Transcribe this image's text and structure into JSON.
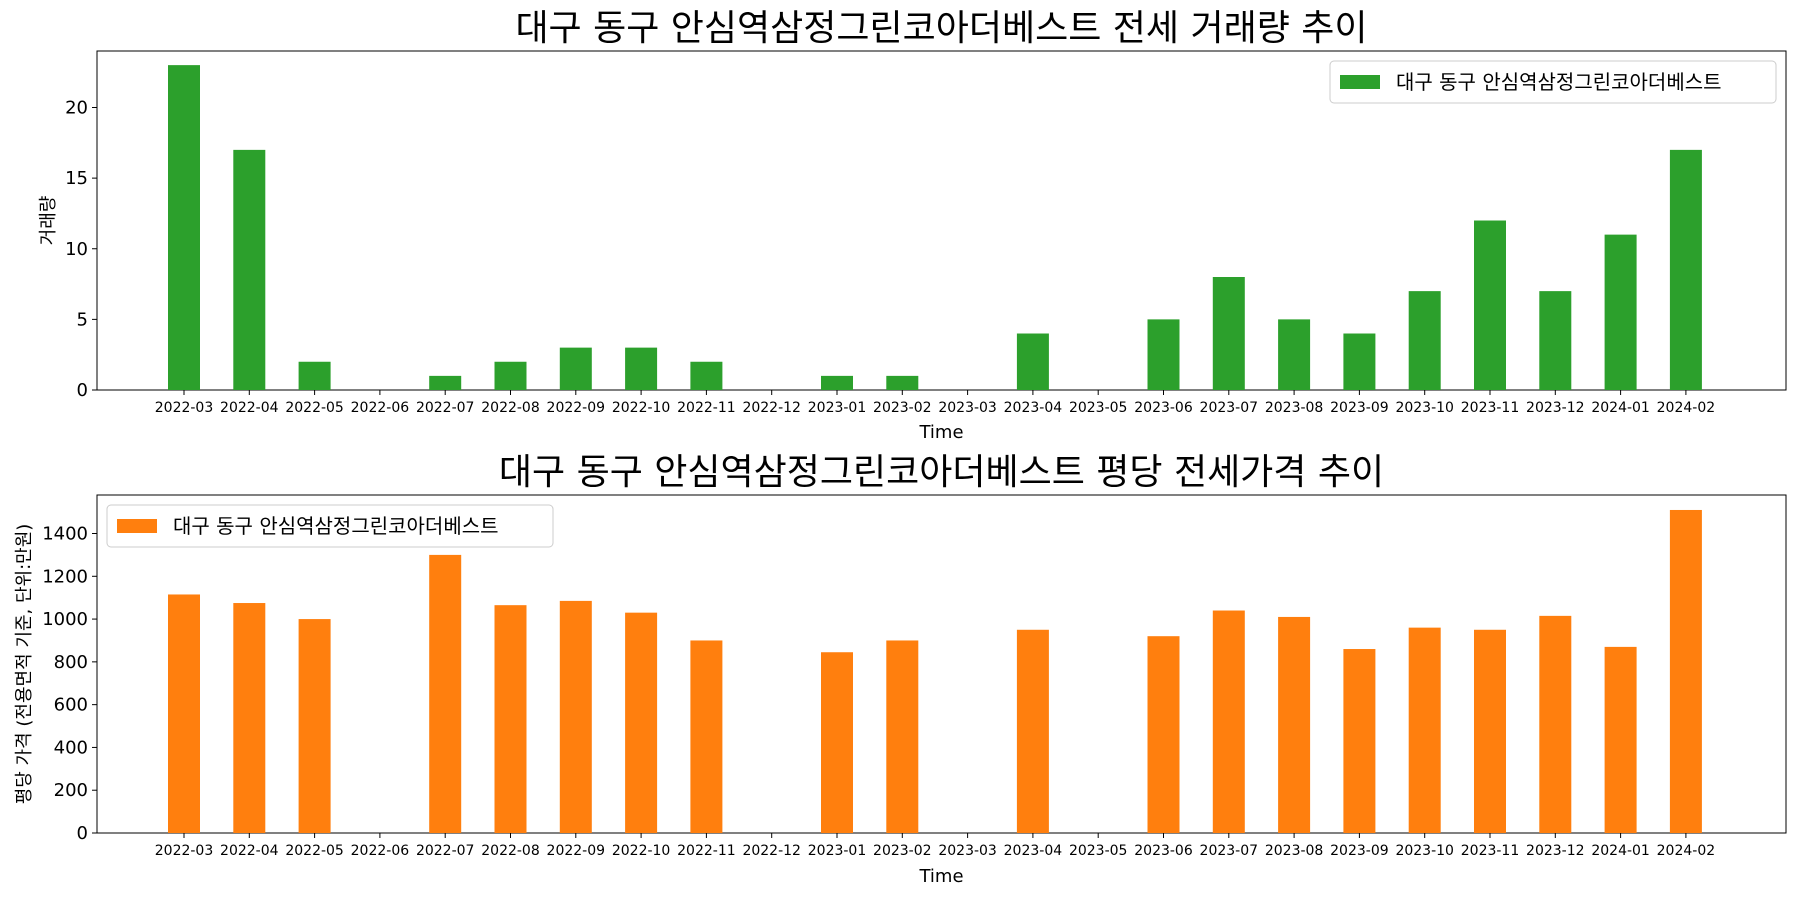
{
  "chart_data": [
    {
      "type": "bar",
      "title": "대구 동구 안심역삼정그린코아더베스트 전세 거래량 추이",
      "xlabel": "Time",
      "ylabel": "거래량",
      "ylim": [
        0,
        24
      ],
      "yticks": [
        0,
        5,
        10,
        15,
        20
      ],
      "legend_position": "upper right",
      "color": "#2ca02c",
      "categories": [
        "2022-03",
        "2022-04",
        "2022-05",
        "2022-06",
        "2022-07",
        "2022-08",
        "2022-09",
        "2022-10",
        "2022-11",
        "2022-12",
        "2023-01",
        "2023-02",
        "2023-03",
        "2023-04",
        "2023-05",
        "2023-06",
        "2023-07",
        "2023-08",
        "2023-09",
        "2023-10",
        "2023-11",
        "2023-12",
        "2024-01",
        "2024-02"
      ],
      "series": [
        {
          "name": "대구 동구 안심역삼정그린코아더베스트",
          "values": [
            23,
            17,
            2,
            0,
            1,
            2,
            3,
            3,
            2,
            0,
            1,
            1,
            0,
            4,
            0,
            5,
            8,
            5,
            4,
            7,
            12,
            7,
            11,
            17
          ]
        }
      ]
    },
    {
      "type": "bar",
      "title": "대구 동구 안심역삼정그린코아더베스트 평당 전세가격 추이",
      "xlabel": "Time",
      "ylabel": "평당 가격 (전용면적 기준, 단위:만원)",
      "ylim": [
        0,
        1580
      ],
      "yticks": [
        0,
        200,
        400,
        600,
        800,
        1000,
        1200,
        1400
      ],
      "legend_position": "upper left",
      "color": "#ff7f0e",
      "categories": [
        "2022-03",
        "2022-04",
        "2022-05",
        "2022-06",
        "2022-07",
        "2022-08",
        "2022-09",
        "2022-10",
        "2022-11",
        "2022-12",
        "2023-01",
        "2023-02",
        "2023-03",
        "2023-04",
        "2023-05",
        "2023-06",
        "2023-07",
        "2023-08",
        "2023-09",
        "2023-10",
        "2023-11",
        "2023-12",
        "2024-01",
        "2024-02"
      ],
      "series": [
        {
          "name": "대구 동구 안심역삼정그린코아더베스트",
          "values": [
            1115,
            1075,
            1000,
            null,
            1300,
            1065,
            1085,
            1030,
            900,
            null,
            845,
            900,
            null,
            950,
            null,
            920,
            1040,
            1010,
            860,
            960,
            950,
            1015,
            870,
            1510
          ]
        }
      ]
    }
  ]
}
